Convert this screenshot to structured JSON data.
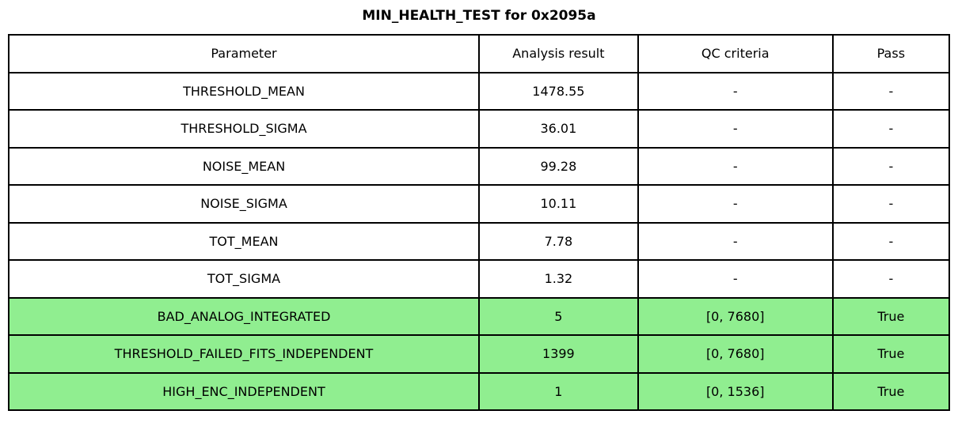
{
  "chart_data": {
    "type": "table",
    "title": "MIN_HEALTH_TEST for 0x2095a",
    "columns": [
      "Parameter",
      "Analysis result",
      "QC criteria",
      "Pass"
    ],
    "rows": [
      [
        "THRESHOLD_MEAN",
        "1478.55",
        "-",
        "-"
      ],
      [
        "THRESHOLD_SIGMA",
        "36.01",
        "-",
        "-"
      ],
      [
        "NOISE_MEAN",
        "99.28",
        "-",
        "-"
      ],
      [
        "NOISE_SIGMA",
        "10.11",
        "-",
        "-"
      ],
      [
        "TOT_MEAN",
        "7.78",
        "-",
        "-"
      ],
      [
        "TOT_SIGMA",
        "1.32",
        "-",
        "-"
      ],
      [
        "BAD_ANALOG_INTEGRATED",
        "5",
        "[0, 7680]",
        "True"
      ],
      [
        "THRESHOLD_FAILED_FITS_INDEPENDENT",
        "1399",
        "[0, 7680]",
        "True"
      ],
      [
        "HIGH_ENC_INDEPENDENT",
        "1",
        "[0, 1536]",
        "True"
      ]
    ],
    "highlighted_rows": [
      6,
      7,
      8
    ],
    "highlight_color": "#90EE90",
    "layout": {
      "grid": "on",
      "border_color": "#000000",
      "background": "#ffffff"
    }
  }
}
